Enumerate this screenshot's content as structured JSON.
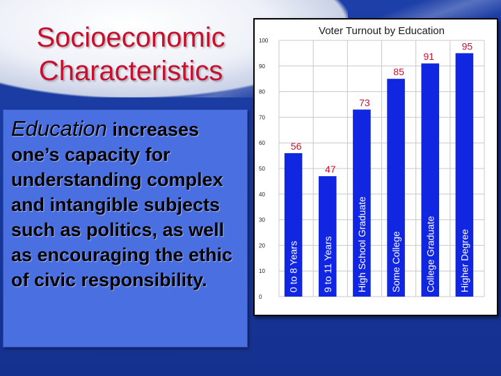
{
  "slide": {
    "title_line1": "Socioeconomic",
    "title_line2": "Characteristics",
    "body_emphasis": "Education",
    "body_lead": " increases",
    "body_rest": "one’s capacity for understanding complex and intangible subjects such as politics, as well as encouraging the ethic of civic responsibility."
  },
  "colors": {
    "background": "#1d3fa8",
    "title": "#c8102e",
    "bars": "#1026e0",
    "value_labels": "#c8102e",
    "textbox": "#4a6fe0"
  },
  "chart_data": {
    "type": "bar",
    "title": "Voter Turnout by Education",
    "categories": [
      "0 to 8 Years",
      "9 to 11 Years",
      "High School Graduate",
      "Some College",
      "College Graduate",
      "Higher Degree"
    ],
    "values": [
      56,
      47,
      73,
      85,
      91,
      95
    ],
    "value_labels": [
      "56",
      "47",
      "73",
      "85",
      "91",
      "95"
    ],
    "ylim": [
      0,
      100
    ],
    "yticks": [
      "0",
      "10",
      "20",
      "30",
      "40",
      "50",
      "60",
      "70",
      "80",
      "90",
      "100"
    ],
    "grid": true,
    "legend": "none"
  }
}
